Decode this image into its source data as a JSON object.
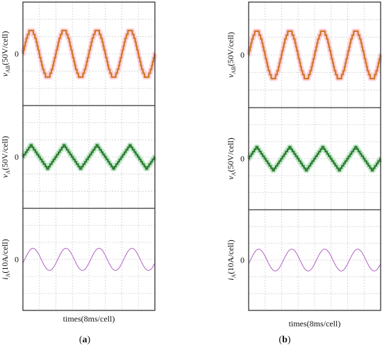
{
  "figure": {
    "panel_labels": [
      "(a)",
      "(b)"
    ],
    "panel_label_parts": [
      {
        "open": "(",
        "letter": "a",
        "close": ")"
      },
      {
        "open": "(",
        "letter": "b",
        "close": ")"
      }
    ],
    "xlabel": "times(8ms/cell)",
    "colors": {
      "vab": "#d07a2c",
      "vab_glow": "#ffb0c4",
      "va": "#2e7d32",
      "va_glow": "#8fd19e",
      "ia": "#b05ec2",
      "grid": "#cfcfcf",
      "frame": "#333333"
    }
  },
  "chart_data": [
    {
      "type": "line",
      "panel": "a",
      "xlabel": "times(8ms/cell)",
      "rows": [
        {
          "key": "vab",
          "ylabel_sym": "v",
          "ylabel_sub": "AB",
          "ylabel_unit": "(50V/cell)",
          "zero_label": "0",
          "waveform": "stepped-sine",
          "amplitude_cells": 1.35,
          "cycles": 4,
          "phase_deg": 0
        },
        {
          "key": "va",
          "ylabel_sym": "v",
          "ylabel_sub": "A",
          "ylabel_unit": "(50V/cell)",
          "zero_label": "0",
          "waveform": "stepped-triangle",
          "amplitude_cells": 0.7,
          "cycles": 4,
          "phase_deg": 0
        },
        {
          "key": "ia",
          "ylabel_sym": "i",
          "ylabel_sub": "A",
          "ylabel_unit": "(10A/cell)",
          "zero_label": "0",
          "waveform": "sine",
          "amplitude_cells": 0.65,
          "cycles": 4,
          "phase_deg": -20
        }
      ]
    },
    {
      "type": "line",
      "panel": "b",
      "xlabel": "times(8ms/cell)",
      "rows": [
        {
          "key": "vab",
          "ylabel_sym": "v",
          "ylabel_sub": "AB",
          "ylabel_unit": "(50V/cell)",
          "zero_label": "0",
          "waveform": "stepped-sine",
          "amplitude_cells": 1.35,
          "cycles": 4,
          "phase_deg": 0
        },
        {
          "key": "va",
          "ylabel_sym": "v",
          "ylabel_sub": "A",
          "ylabel_unit": "(50V/cell)",
          "zero_label": "0",
          "waveform": "stepped-triangle",
          "amplitude_cells": 0.7,
          "cycles": 4,
          "phase_deg": 0
        },
        {
          "key": "ia",
          "ylabel_sym": "i",
          "ylabel_sub": "A",
          "ylabel_unit": "(10A/cell)",
          "zero_label": "0",
          "waveform": "sine",
          "amplitude_cells": 0.65,
          "cycles": 4,
          "phase_deg": -20
        }
      ]
    }
  ]
}
